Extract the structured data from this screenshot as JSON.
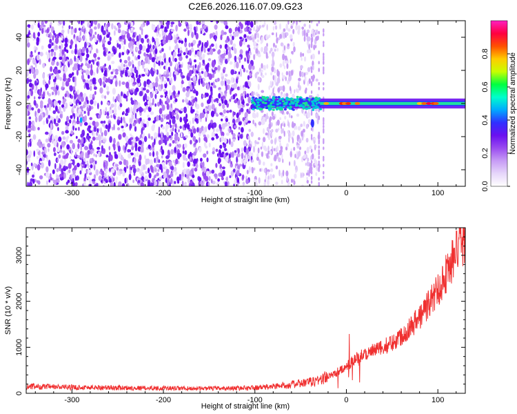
{
  "title": "C2E6.2026.116.07.09.G23",
  "chart_data": [
    {
      "type": "heatmap",
      "xlabel": "Height of straight line (km)",
      "ylabel": "Frequency (Hz)",
      "xlim": [
        -350,
        130
      ],
      "ylim": [
        -50,
        50
      ],
      "x_ticks": [
        -300,
        -200,
        -100,
        0,
        100
      ],
      "y_ticks": [
        -40,
        -20,
        0,
        20,
        40
      ],
      "colorbar": {
        "label": "Normalized spectral amplitude",
        "range": [
          0,
          1
        ],
        "ticks": [
          0.0,
          0.2,
          0.4,
          0.6,
          0.8
        ],
        "colors": [
          "#ffffff",
          "#e6d6fa",
          "#c79cf5",
          "#9a4cf0",
          "#6a10f0",
          "#3030ff",
          "#00aaff",
          "#00ffcc",
          "#00ff40",
          "#c8ff00",
          "#ffcc00",
          "#ff5000",
          "#ff0040",
          "#ff20c0"
        ]
      },
      "regions": [
        {
          "x": [
            -350,
            -103
          ],
          "y": [
            -50,
            50
          ],
          "amplitude": 0.05,
          "description": "broadband noise"
        },
        {
          "x": [
            -103,
            -30
          ],
          "y": [
            -50,
            50
          ],
          "amplitude": 0.02,
          "description": "sparse noise"
        },
        {
          "x": [
            -103,
            130
          ],
          "y": [
            -3,
            3
          ],
          "amplitude": 0.4,
          "description": "signal line near 0 Hz"
        }
      ]
    },
    {
      "type": "line",
      "xlabel": "Height of straight line (km)",
      "ylabel": "SNR (10 * v/v)",
      "xlim": [
        -350,
        130
      ],
      "ylim": [
        0,
        3600
      ],
      "x_ticks": [
        -300,
        -200,
        -100,
        0,
        100
      ],
      "y_ticks": [
        0,
        1000,
        2000,
        3000
      ],
      "color": "#f03030",
      "series": [
        {
          "x": [
            -350,
            -325,
            -300,
            -275,
            -250,
            -225,
            -200,
            -175,
            -150,
            -125,
            -100,
            -85,
            -70,
            -55,
            -40,
            -30,
            -20,
            -10,
            0,
            10,
            20,
            30,
            40,
            50,
            60,
            70,
            80,
            90,
            100,
            110,
            120,
            130
          ],
          "values": [
            150,
            140,
            130,
            125,
            120,
            115,
            110,
            105,
            105,
            110,
            120,
            140,
            170,
            200,
            240,
            290,
            360,
            450,
            580,
            760,
            860,
            920,
            1000,
            1100,
            1250,
            1450,
            1650,
            1950,
            2250,
            2650,
            3050,
            3400
          ]
        }
      ]
    }
  ]
}
